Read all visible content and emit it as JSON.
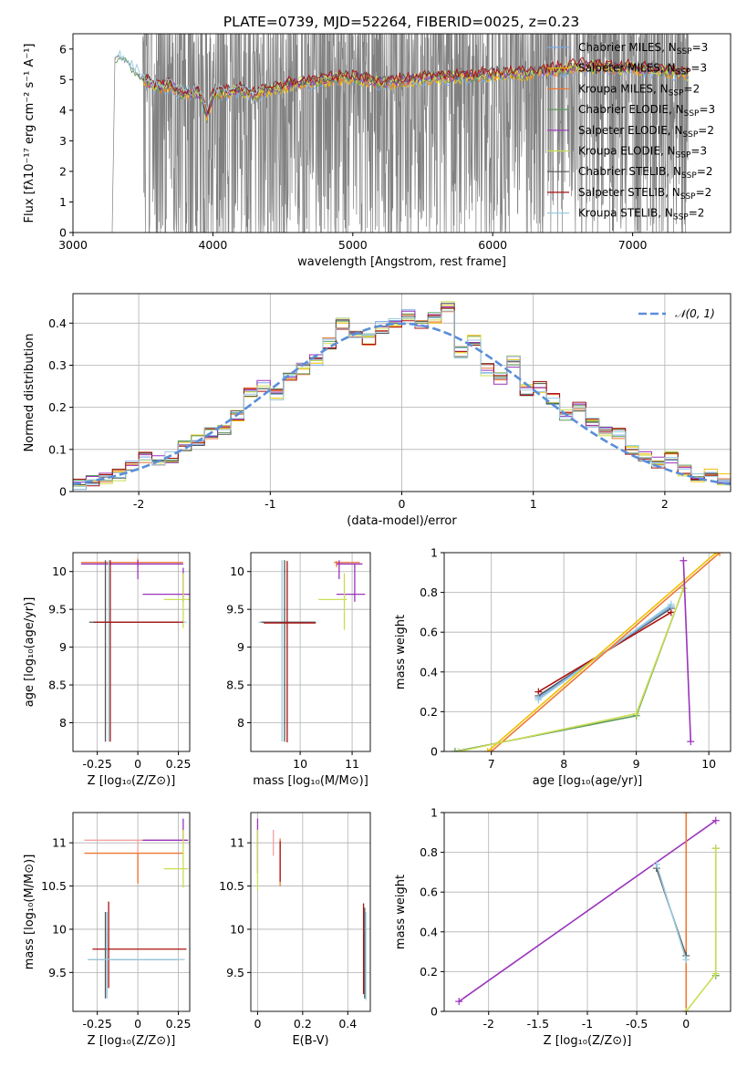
{
  "figure": {
    "title": "PLATE=0739, MJD=52264, FIBERID=0025, z=0.23"
  },
  "colors": {
    "Chabrier MILES": "#7aa9e6",
    "Salpeter MILES": "#f0c000",
    "Kroupa MILES": "#ee7733",
    "Chabrier ELODIE": "#5c9a5c",
    "Salpeter ELODIE": "#9933bb",
    "Kroupa ELODIE": "#ccdd55",
    "Chabrier STELIB": "#555555",
    "Salpeter STELIB": "#aa1111",
    "Kroupa STELIB": "#99cce0",
    "data": "#808080",
    "gaussian": "#5b8ed9"
  },
  "chart_data": [
    {
      "id": "spectrum",
      "type": "line",
      "title": "PLATE=0739, MJD=52264, FIBERID=0025, z=0.23",
      "xlabel": "wavelength [Angstrom, rest frame]",
      "ylabel": "Flux [fλ10⁻¹⁷ erg cm⁻² s⁻¹ A⁻¹]",
      "xlim": [
        3000,
        7700
      ],
      "ylim": [
        0,
        6.5
      ],
      "xticks": [
        3000,
        4000,
        5000,
        6000,
        7000
      ],
      "yticks": [
        0,
        1,
        2,
        3,
        4,
        5,
        6
      ],
      "grid": false,
      "legend_position": "right",
      "legend": [
        {
          "label": "Chabrier MILES, N",
          "sub": "SSP",
          "suffix": "=3"
        },
        {
          "label": "Salpeter MILES, N",
          "sub": "SSP",
          "suffix": "=3"
        },
        {
          "label": "Kroupa MILES, N",
          "sub": "SSP",
          "suffix": "=2"
        },
        {
          "label": "Chabrier ELODIE, N",
          "sub": "SSP",
          "suffix": "=3"
        },
        {
          "label": "Salpeter ELODIE, N",
          "sub": "SSP",
          "suffix": "=2"
        },
        {
          "label": "Kroupa ELODIE, N",
          "sub": "SSP",
          "suffix": "=3"
        },
        {
          "label": "Chabrier STELIB, N",
          "sub": "SSP",
          "suffix": "=2"
        },
        {
          "label": "Salpeter STELIB, N",
          "sub": "SSP",
          "suffix": "=2"
        },
        {
          "label": "Kroupa STELIB, N",
          "sub": "SSP",
          "suffix": "=2"
        }
      ],
      "model_continuum": [
        [
          3280,
          0
        ],
        [
          3300,
          5.7
        ],
        [
          3330,
          5.75
        ],
        [
          3400,
          5.5
        ],
        [
          3500,
          5.0
        ],
        [
          3600,
          4.75
        ],
        [
          3700,
          4.8
        ],
        [
          3800,
          4.5
        ],
        [
          3900,
          4.6
        ],
        [
          3960,
          3.8
        ],
        [
          4000,
          4.5
        ],
        [
          4100,
          4.6
        ],
        [
          4200,
          4.7
        ],
        [
          4300,
          4.5
        ],
        [
          4400,
          4.7
        ],
        [
          4600,
          4.9
        ],
        [
          4800,
          5.0
        ],
        [
          5000,
          5.1
        ],
        [
          5200,
          4.9
        ],
        [
          5400,
          5.0
        ],
        [
          5600,
          5.1
        ],
        [
          5800,
          5.1
        ],
        [
          6000,
          5.2
        ],
        [
          6200,
          5.2
        ],
        [
          6400,
          5.3
        ],
        [
          6560,
          5.4
        ],
        [
          6600,
          5.5
        ],
        [
          6800,
          5.4
        ],
        [
          7000,
          5.4
        ],
        [
          7200,
          5.3
        ],
        [
          7400,
          5.2
        ]
      ],
      "data_noise_range": [
        3500,
        7400
      ]
    },
    {
      "id": "residual-histogram",
      "type": "line",
      "xlabel": "(data-model)/error",
      "ylabel": "Normed distribution",
      "xlim": [
        -2.5,
        2.5
      ],
      "ylim": [
        0,
        0.47
      ],
      "xticks": [
        -2,
        -1,
        0,
        1,
        2
      ],
      "yticks": [
        0.0,
        0.1,
        0.2,
        0.3,
        0.4
      ],
      "grid": true,
      "legend": [
        {
          "label": "𝒩(0, 1)"
        }
      ],
      "bins_center": [
        -2.45,
        -2.35,
        -2.25,
        -2.15,
        -2.05,
        -1.95,
        -1.85,
        -1.75,
        -1.65,
        -1.55,
        -1.45,
        -1.35,
        -1.25,
        -1.15,
        -1.05,
        -0.95,
        -0.85,
        -0.75,
        -0.65,
        -0.55,
        -0.45,
        -0.35,
        -0.25,
        -0.15,
        -0.05,
        0.05,
        0.15,
        0.25,
        0.35,
        0.45,
        0.55,
        0.65,
        0.75,
        0.85,
        0.95,
        1.05,
        1.15,
        1.25,
        1.35,
        1.45,
        1.55,
        1.65,
        1.75,
        1.85,
        1.95,
        2.05,
        2.15,
        2.25,
        2.35,
        2.45
      ],
      "hist_values": [
        0.02,
        0.025,
        0.03,
        0.04,
        0.06,
        0.08,
        0.07,
        0.08,
        0.11,
        0.12,
        0.14,
        0.15,
        0.18,
        0.24,
        0.25,
        0.23,
        0.27,
        0.29,
        0.31,
        0.35,
        0.4,
        0.38,
        0.36,
        0.39,
        0.4,
        0.42,
        0.4,
        0.41,
        0.44,
        0.33,
        0.36,
        0.29,
        0.27,
        0.31,
        0.24,
        0.25,
        0.22,
        0.18,
        0.2,
        0.16,
        0.14,
        0.14,
        0.1,
        0.08,
        0.07,
        0.08,
        0.05,
        0.03,
        0.04,
        0.03
      ]
    },
    {
      "id": "age-vs-Z",
      "type": "scatter",
      "xlabel": "Z [log₁₀(Z/Z⊙)]",
      "ylabel": "age  [log₁₀(age/yr)]",
      "xlim": [
        -0.4,
        0.32
      ],
      "ylim": [
        7.62,
        10.25
      ],
      "xticks": [
        -0.25,
        0.0,
        0.25
      ],
      "yticks": [
        8.0,
        8.5,
        9.0,
        9.5,
        10.0
      ],
      "grid": true
    },
    {
      "id": "age-vs-mass",
      "type": "scatter",
      "xlabel": "mass [log₁₀(M/M⊙)]",
      "xlim": [
        9.05,
        11.35
      ],
      "ylim": [
        7.62,
        10.25
      ],
      "xticks": [
        10,
        11
      ],
      "yticks": [
        8.0,
        8.5,
        9.0,
        9.5,
        10.0
      ],
      "grid": true
    },
    {
      "id": "massweight-vs-age",
      "type": "line",
      "xlabel": "age  [log₁₀(age/yr)]",
      "ylabel": "mass weight",
      "xlim": [
        6.35,
        10.3
      ],
      "ylim": [
        0,
        1.0
      ],
      "xticks": [
        7,
        8,
        9,
        10
      ],
      "yticks": [
        0.0,
        0.2,
        0.4,
        0.6,
        0.8,
        1.0
      ],
      "grid": true,
      "series": [
        {
          "key": "Chabrier STELIB",
          "x": [
            7.65,
            9.48
          ],
          "y": [
            0.28,
            0.72
          ]
        },
        {
          "key": "Salpeter STELIB",
          "x": [
            7.65,
            9.48
          ],
          "y": [
            0.3,
            0.7
          ]
        },
        {
          "key": "Chabrier MILES",
          "x": [
            7.65,
            9.48
          ],
          "y": [
            0.27,
            0.73
          ]
        },
        {
          "key": "Kroupa STELIB",
          "x": [
            7.65,
            9.48
          ],
          "y": [
            0.26,
            0.74
          ]
        },
        {
          "key": "Kroupa MILES",
          "x": [
            7.0,
            10.15
          ],
          "y": [
            0.0,
            1.0
          ]
        },
        {
          "key": "Salpeter MILES",
          "x": [
            6.95,
            10.1
          ],
          "y": [
            0.0,
            1.0
          ]
        },
        {
          "key": "Chabrier ELODIE",
          "x": [
            6.5,
            9.0,
            9.65
          ],
          "y": [
            0.0,
            0.18,
            0.82
          ]
        },
        {
          "key": "Kroupa ELODIE",
          "x": [
            6.55,
            9.0,
            9.65
          ],
          "y": [
            0.0,
            0.19,
            0.82
          ]
        },
        {
          "key": "Salpeter ELODIE",
          "x": [
            9.65,
            9.75
          ],
          "y": [
            0.96,
            0.05
          ]
        }
      ]
    },
    {
      "id": "mass-vs-Z",
      "type": "scatter",
      "xlabel": "Z [log₁₀(Z/Z⊙)]",
      "ylabel": "mass [log₁₀(M/M⊙)]",
      "xlim": [
        -0.4,
        0.32
      ],
      "ylim": [
        9.05,
        11.35
      ],
      "xticks": [
        -0.25,
        0.0,
        0.25
      ],
      "yticks": [
        9.5,
        10.0,
        10.5,
        11.0
      ],
      "grid": true
    },
    {
      "id": "mass-vs-EBV",
      "type": "scatter",
      "xlabel": "E(B-V)",
      "xlim": [
        -0.03,
        0.5
      ],
      "ylim": [
        9.05,
        11.35
      ],
      "xticks": [
        0.0,
        0.2,
        0.4
      ],
      "yticks": [
        9.5,
        10.0,
        10.5,
        11.0
      ],
      "grid": true
    },
    {
      "id": "massweight-vs-Z",
      "type": "line",
      "xlabel": "Z [log₁₀(Z/Z⊙)]",
      "ylabel": "mass weight",
      "xlim": [
        -2.45,
        0.45
      ],
      "ylim": [
        0,
        1.0
      ],
      "xticks": [
        -2.0,
        -1.5,
        -1.0,
        -0.5,
        0.0
      ],
      "yticks": [
        0.0,
        0.2,
        0.4,
        0.6,
        0.8,
        1.0
      ],
      "grid": true,
      "series": [
        {
          "key": "Salpeter ELODIE",
          "x": [
            -2.3,
            0.3
          ],
          "y": [
            0.05,
            0.96
          ]
        },
        {
          "key": "Kroupa MILES",
          "x": [
            0.0,
            0.0
          ],
          "y": [
            0.0,
            1.0
          ]
        },
        {
          "key": "Chabrier STELIB",
          "x": [
            -0.3,
            0.0
          ],
          "y": [
            0.72,
            0.28
          ]
        },
        {
          "key": "Kroupa STELIB",
          "x": [
            -0.3,
            0.0
          ],
          "y": [
            0.74,
            0.26
          ]
        },
        {
          "key": "Chabrier ELODIE",
          "x": [
            0.3,
            0.3
          ],
          "y": [
            0.18,
            0.82
          ]
        },
        {
          "key": "Kroupa ELODIE",
          "x": [
            0.0,
            0.3,
            0.3
          ],
          "y": [
            0.0,
            0.19,
            0.82
          ]
        }
      ]
    }
  ]
}
